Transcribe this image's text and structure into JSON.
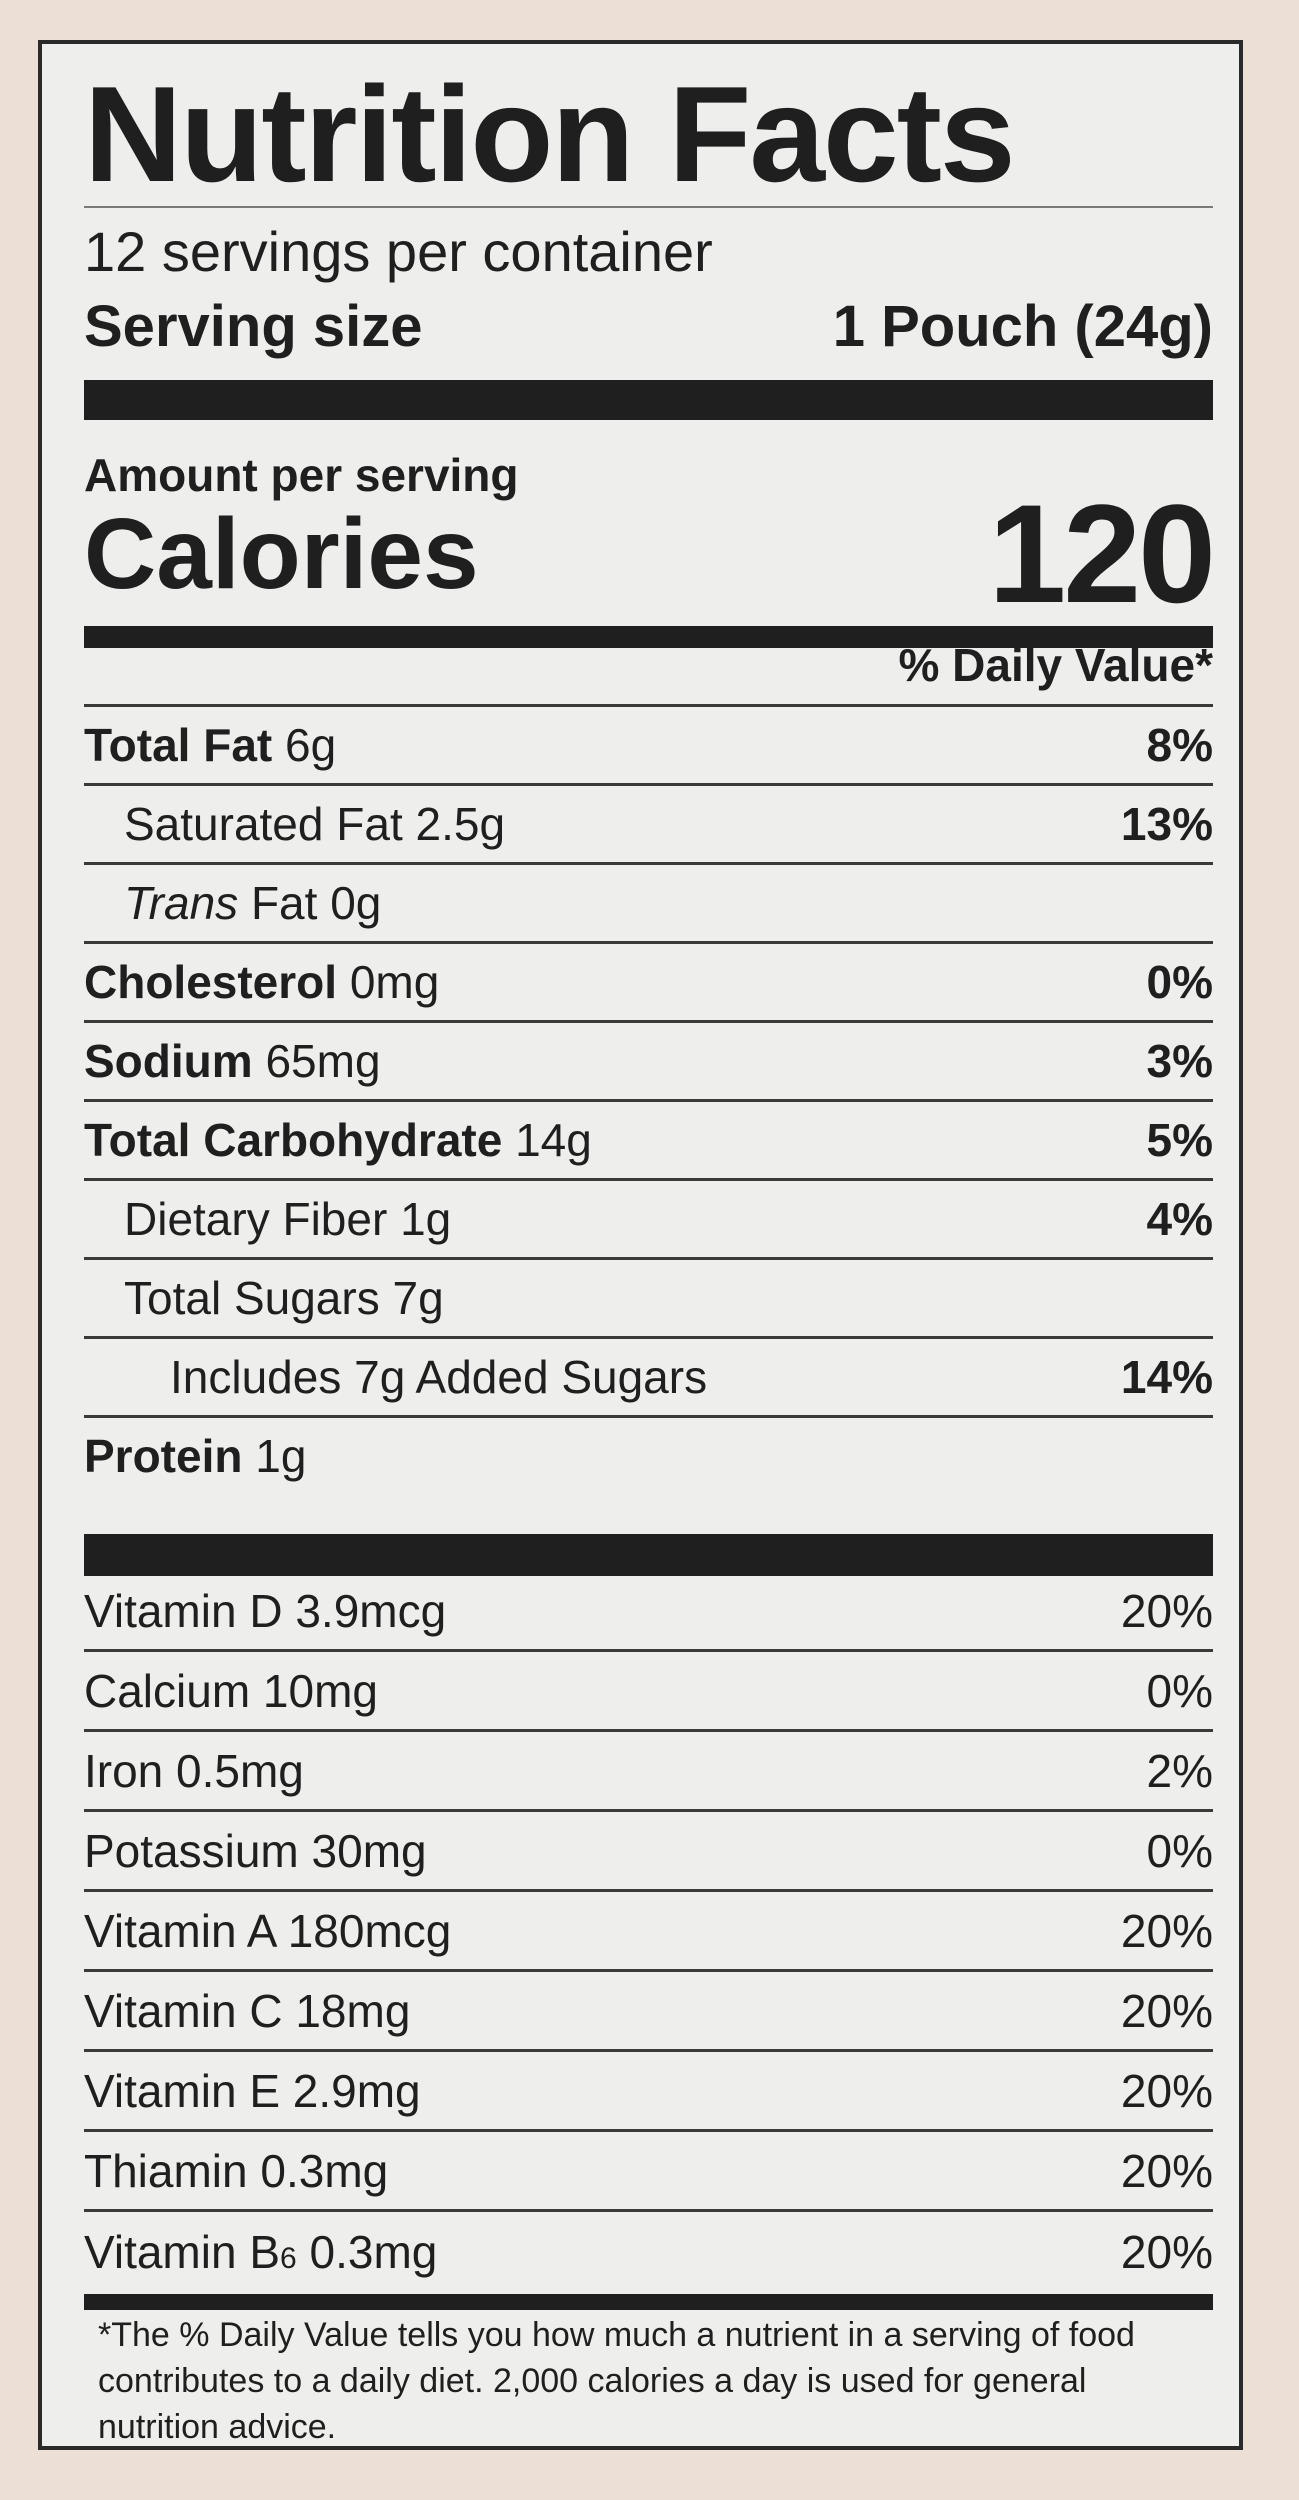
{
  "label": {
    "title": "Nutrition Facts",
    "servings_per_container": "12 servings per container",
    "serving_size_label": "Serving size",
    "serving_size_value": "1 Pouch (24g)",
    "amount_per_serving": "Amount per serving",
    "calories_label": "Calories",
    "calories_value": "120",
    "daily_value_header": "% Daily Value*",
    "nutrients": [
      {
        "name": "Total Fat",
        "amount": "6g",
        "dv": "8%"
      },
      {
        "name": "Saturated Fat",
        "amount": "2.5g",
        "dv": "13%"
      },
      {
        "name": "Trans",
        "name_rest": "Fat",
        "amount": "0g",
        "dv": ""
      },
      {
        "name": "Cholesterol",
        "amount": "0mg",
        "dv": "0%"
      },
      {
        "name": "Sodium",
        "amount": "65mg",
        "dv": "3%"
      },
      {
        "name": "Total Carbohydrate",
        "amount": "14g",
        "dv": "5%"
      },
      {
        "name": "Dietary Fiber",
        "amount": "1g",
        "dv": "4%"
      },
      {
        "name": "Total Sugars",
        "amount": "7g",
        "dv": ""
      },
      {
        "name": "Includes 7g Added Sugars",
        "amount": "",
        "dv": "14%"
      },
      {
        "name": "Protein",
        "amount": "1g",
        "dv": ""
      }
    ],
    "vitamins": [
      {
        "name": "Vitamin D 3.9mcg",
        "dv": "20%"
      },
      {
        "name": "Calcium 10mg",
        "dv": "0%"
      },
      {
        "name": "Iron 0.5mg",
        "dv": "2%"
      },
      {
        "name": "Potassium 30mg",
        "dv": "0%"
      },
      {
        "name": "Vitamin A 180mcg",
        "dv": "20%"
      },
      {
        "name": "Vitamin C 18mg",
        "dv": "20%"
      },
      {
        "name": "Vitamin E 2.9mg",
        "dv": "20%"
      },
      {
        "name": "Thiamin 0.3mg",
        "dv": "20%"
      },
      {
        "name": "Vitamin B",
        "name_sub": "6",
        "amount": "0.3mg",
        "dv": "20%"
      }
    ],
    "footnote": "*The % Daily Value tells you how much a nutrient in a serving of food contributes to a daily diet. 2,000 calories a day is used for general nutrition advice."
  }
}
